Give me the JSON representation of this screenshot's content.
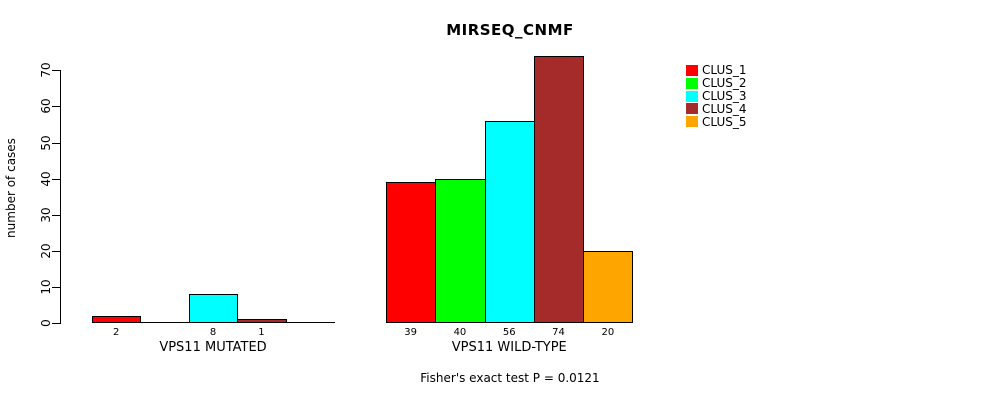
{
  "title": "MIRSEQ_CNMF",
  "footer": "Fisher's exact test P = 0.0121",
  "y_axis": {
    "label": "number of cases"
  },
  "legend": {
    "items": [
      {
        "label": "CLUS_1",
        "color": "#FF0000"
      },
      {
        "label": "CLUS_2",
        "color": "#00FF00"
      },
      {
        "label": "CLUS_3",
        "color": "#00FFFF"
      },
      {
        "label": "CLUS_4",
        "color": "#A52A2A"
      },
      {
        "label": "CLUS_5",
        "color": "#FFA500"
      }
    ]
  },
  "chart_data": {
    "type": "bar",
    "title": "MIRSEQ_CNMF",
    "ylabel": "number of cases",
    "ylim": [
      0,
      75
    ],
    "yticks": [
      0,
      10,
      20,
      30,
      40,
      50,
      60,
      70
    ],
    "grid": false,
    "legend_position": "top-right",
    "series_names": [
      "CLUS_1",
      "CLUS_2",
      "CLUS_3",
      "CLUS_4",
      "CLUS_5"
    ],
    "series_colors": [
      "#FF0000",
      "#00FF00",
      "#00FFFF",
      "#A52A2A",
      "#FFA500"
    ],
    "groups": [
      {
        "label": "VPS11 MUTATED",
        "values": [
          2,
          0,
          8,
          1,
          0
        ],
        "bar_labels": [
          "2",
          "",
          "8",
          "1",
          ""
        ]
      },
      {
        "label": "VPS11 WILD-TYPE",
        "values": [
          39,
          40,
          56,
          74,
          20
        ],
        "bar_labels": [
          "39",
          "40",
          "56",
          "74",
          "20"
        ]
      }
    ],
    "annotation": "Fisher's exact test P = 0.0121"
  }
}
